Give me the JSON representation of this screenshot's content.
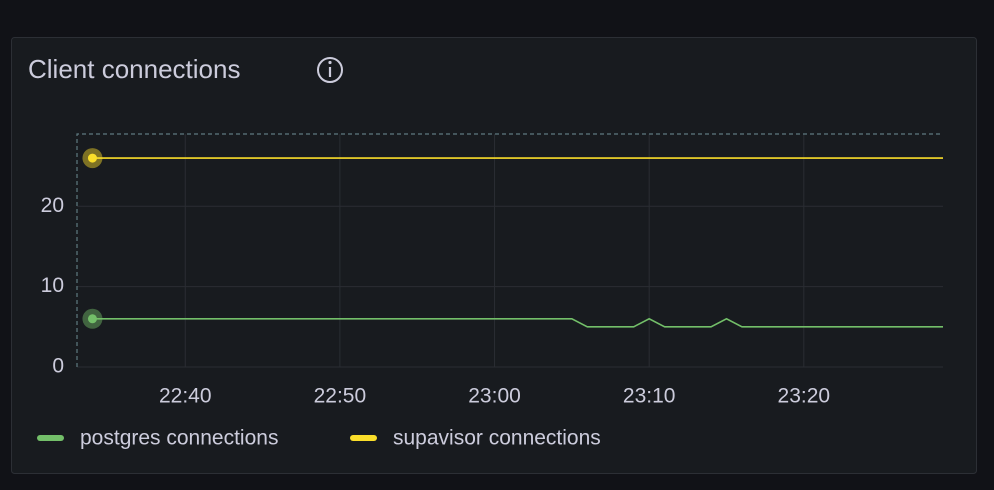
{
  "chart_data": {
    "type": "line",
    "title": "Client connections",
    "x": [
      "22:34",
      "23:05",
      "23:06",
      "23:09",
      "23:10",
      "23:11",
      "23:14",
      "23:15",
      "23:16",
      "23:29"
    ],
    "series": [
      {
        "name": "postgres connections",
        "color": "#73bf69",
        "values": [
          6,
          6,
          5,
          5,
          6,
          5,
          5,
          6,
          5,
          5
        ]
      },
      {
        "name": "supavisor connections",
        "color": "#fade2a",
        "values": [
          26,
          26,
          26,
          26,
          26,
          26,
          26,
          26,
          26,
          26
        ]
      }
    ],
    "xlim": [
      "22:33",
      "23:29"
    ],
    "xticks": [
      "22:40",
      "22:50",
      "23:00",
      "23:10",
      "23:20"
    ],
    "ylim": [
      0,
      29
    ],
    "yticks": [
      0,
      10,
      20
    ],
    "grid": true
  }
}
